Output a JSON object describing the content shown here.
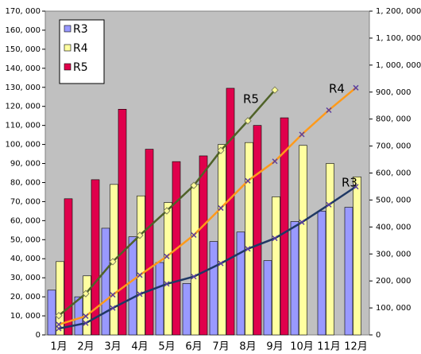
{
  "chart_data": {
    "type": "bar",
    "categories": [
      "1月",
      "2月",
      "3月",
      "4月",
      "5月",
      "6月",
      "7月",
      "8月",
      "9月",
      "10月",
      "11月",
      "12月"
    ],
    "series": [
      {
        "name": "R3",
        "color": "#9999ff",
        "values": [
          23500,
          20000,
          56000,
          51500,
          38000,
          27000,
          49000,
          54000,
          39000,
          59500,
          65000,
          67000
        ]
      },
      {
        "name": "R4",
        "color": "#ffffa0",
        "values": [
          38500,
          31000,
          79000,
          73000,
          69500,
          79000,
          100000,
          101000,
          72500,
          99500,
          90000,
          83000
        ]
      },
      {
        "name": "R5",
        "color": "#e0004c",
        "values": [
          71500,
          81500,
          118500,
          97500,
          91000,
          94000,
          129500,
          110000,
          114000,
          null,
          null,
          null
        ]
      }
    ],
    "lines": [
      {
        "type": "line",
        "axis": "y2",
        "color": "#1f3864",
        "marker_color": "#5b3fa0",
        "marker": "x",
        "values": [
          23500,
          43500,
          99500,
          151000,
          189000,
          216000,
          265000,
          319000,
          358000,
          417500,
          482500,
          549500
        ]
      },
      {
        "type": "line",
        "axis": "y2",
        "color": "#ff9a1a",
        "marker_color": "#5b3fa0",
        "marker": "x",
        "values": [
          38500,
          69500,
          148500,
          221500,
          291000,
          370000,
          470000,
          571000,
          643500,
          743000,
          833000,
          916000
        ]
      },
      {
        "type": "line",
        "axis": "y2",
        "color": "#4f6228",
        "marker_color": "#ffff99",
        "marker": "diamond",
        "values": [
          71500,
          153000,
          271500,
          369000,
          460000,
          554000,
          683500,
          793500,
          907500,
          null,
          null,
          null
        ]
      }
    ],
    "annotations": [
      "R5",
      "R4",
      "R3"
    ],
    "ylim": [
      0,
      170000
    ],
    "yticks": [
      0,
      {
        "value": 10000,
        "label": "10, 000"
      },
      {
        "value": 20000,
        "label": "20, 000"
      },
      {
        "value": 30000,
        "label": "30, 000"
      },
      {
        "value": 40000,
        "label": "40, 000"
      },
      {
        "value": 50000,
        "label": "50, 000"
      },
      {
        "value": 60000,
        "label": "60, 000"
      },
      {
        "value": 70000,
        "label": "70, 000"
      },
      {
        "value": 80000,
        "label": "80, 000"
      },
      {
        "value": 90000,
        "label": "90, 000"
      },
      {
        "value": 100000,
        "label": "100, 000"
      },
      {
        "value": 110000,
        "label": "110, 000"
      },
      {
        "value": 120000,
        "label": "120, 000"
      },
      {
        "value": 130000,
        "label": "130, 000"
      },
      {
        "value": 140000,
        "label": "140, 000"
      },
      {
        "value": 150000,
        "label": "150, 000"
      },
      {
        "value": 160000,
        "label": "160, 000"
      },
      {
        "value": 170000,
        "label": "170, 000"
      }
    ],
    "y2lim": [
      0,
      1200000
    ],
    "y2ticks": [
      0,
      {
        "value": 100000,
        "label": "100, 000"
      },
      {
        "value": 200000,
        "label": "200, 000"
      },
      {
        "value": 300000,
        "label": "300, 000"
      },
      {
        "value": 400000,
        "label": "400, 000"
      },
      {
        "value": 500000,
        "label": "500, 000"
      },
      {
        "value": 600000,
        "label": "600, 000"
      },
      {
        "value": 700000,
        "label": "700, 000"
      },
      {
        "value": 800000,
        "label": "800, 000"
      },
      {
        "value": 900000,
        "label": "900, 000"
      },
      {
        "value": 1000000,
        "label": "1, 000, 000"
      },
      {
        "value": 1100000,
        "label": "1, 100, 000"
      },
      {
        "value": 1200000,
        "label": "1, 200, 000"
      }
    ],
    "legend": "top-left",
    "background": "#c0c0c0"
  }
}
